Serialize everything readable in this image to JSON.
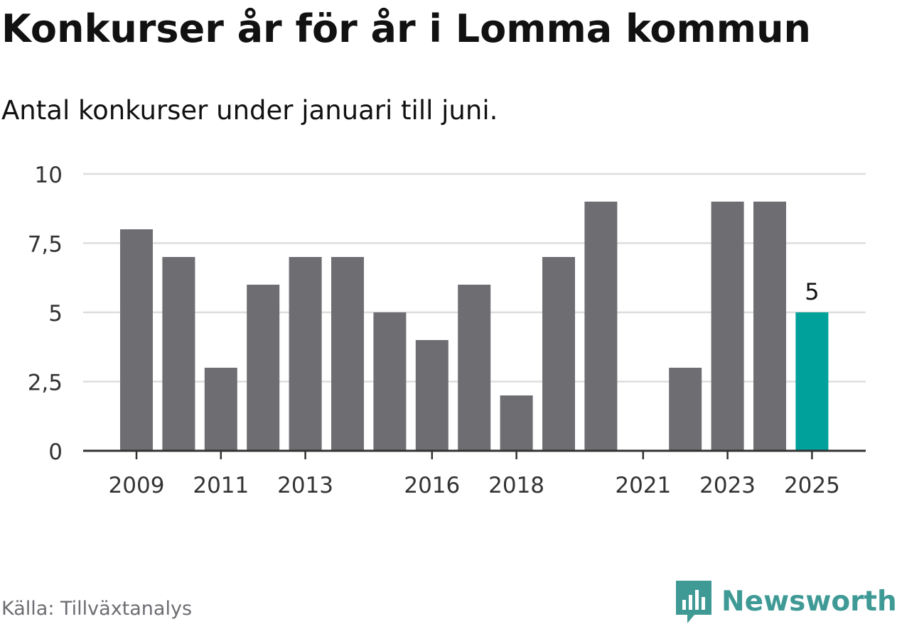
{
  "title": "Konkurser år för år i Lomma kommun",
  "subtitle": "Antal konkurser under januari till juni.",
  "source": "Källa: Tillväxtanalys",
  "brand": {
    "name": "Newsworthy",
    "icon": "newsworthy-logo-icon",
    "color": "#3f9a96"
  },
  "chart_data": {
    "type": "bar",
    "categories": [
      "2009",
      "2010",
      "2011",
      "2012",
      "2013",
      "2014",
      "2015",
      "2016",
      "2017",
      "2018",
      "2019",
      "2020",
      "2021",
      "2022",
      "2023",
      "2024",
      "2025"
    ],
    "values": [
      8,
      7,
      3,
      6,
      7,
      7,
      5,
      4,
      6,
      2,
      7,
      9,
      0,
      3,
      9,
      9,
      5
    ],
    "x_tick_labels": [
      "2009",
      "2011",
      "2013",
      "2016",
      "2018",
      "2021",
      "2023",
      "2025"
    ],
    "y_ticks": [
      0,
      2.5,
      5,
      7.5,
      10
    ],
    "y_tick_labels": [
      "0",
      "2,5",
      "5",
      "7,5",
      "10"
    ],
    "ylim": [
      0,
      10
    ],
    "highlight": {
      "category": "2025",
      "label": "5"
    },
    "grid": true,
    "colors": {
      "bar": "#6e6d72",
      "highlight": "#00a19a",
      "grid": "#dddddd",
      "axis": "#333333"
    }
  }
}
